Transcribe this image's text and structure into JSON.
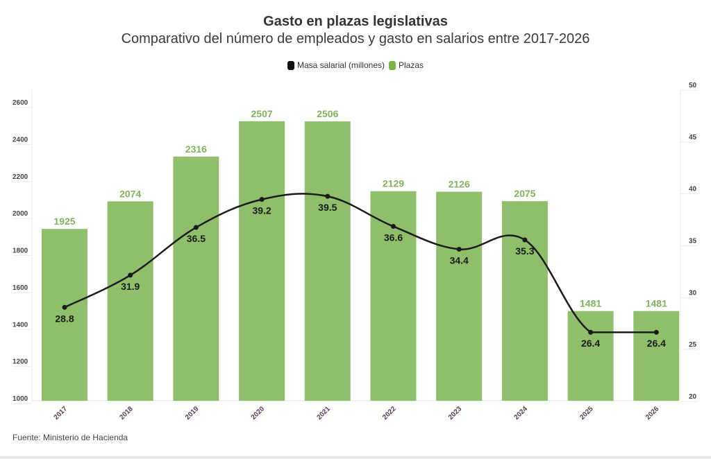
{
  "chart_data": {
    "type": "bar",
    "title": "Gasto en plazas legislativas",
    "subtitle": "Comparativo del número de empleados y gasto en salarios entre 2017-2026",
    "categories": [
      "2017",
      "2018",
      "2019",
      "2020",
      "2021",
      "2022",
      "2023",
      "2024",
      "2025",
      "2026"
    ],
    "series": [
      {
        "name": "Plazas",
        "type": "bar",
        "axis": "left",
        "color": "#8fbf6b",
        "label_color": "#7fb25a",
        "values": [
          1925,
          2074,
          2316,
          2507,
          2506,
          2129,
          2126,
          2075,
          1481,
          1481
        ]
      },
      {
        "name": "Masa salarial (millones)",
        "type": "line",
        "axis": "right",
        "color": "#1a1a1a",
        "values": [
          28.8,
          31.9,
          36.5,
          39.2,
          39.5,
          36.6,
          34.4,
          35.3,
          26.4,
          26.4
        ]
      }
    ],
    "y_left": {
      "label": "",
      "range": [
        1000,
        2600
      ],
      "ticks": [
        1000,
        1200,
        1400,
        1600,
        1800,
        2000,
        2200,
        2400,
        2600
      ]
    },
    "y_right": {
      "label": "",
      "range": [
        20,
        50
      ],
      "ticks": [
        20,
        25,
        30,
        35,
        40,
        45,
        50
      ]
    },
    "xlabel": "",
    "legend": {
      "placement": "top-center",
      "entries": [
        {
          "label": "Masa salarial (millones)",
          "color": "#111111"
        },
        {
          "label": "Plazas",
          "color": "#7cb348"
        }
      ]
    },
    "grid": true,
    "source": "Fuente: Ministerio de Hacienda"
  }
}
